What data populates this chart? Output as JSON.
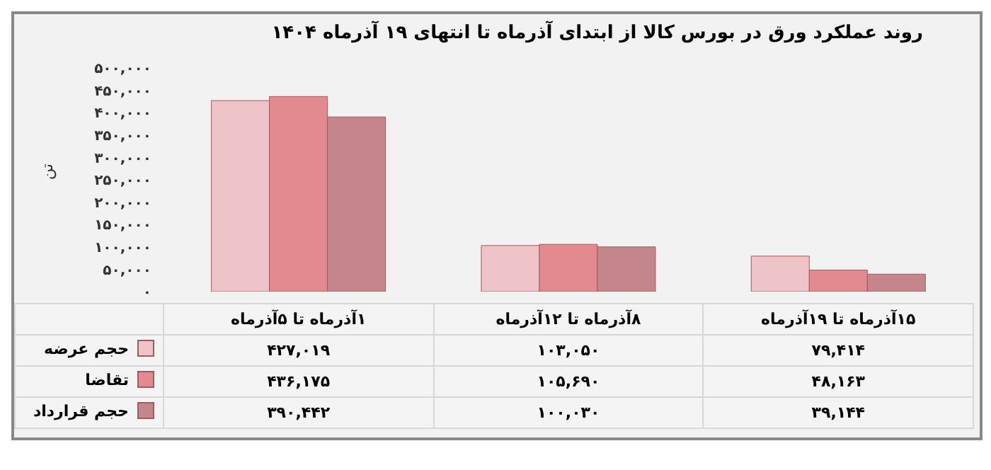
{
  "chart_data": {
    "type": "bar",
    "title": "روند عملکرد ورق در بورس کالا از ابتدای آذرماه تا انتهای ۱۹ آذرماه ۱۴۰۴",
    "ylabel": "تن",
    "categories": [
      "۱آذرماه تا ۵آذرماه",
      "۸آذرماه تا ۱۲آذرماه",
      "۱۵آذرماه تا ۱۹آذرماه"
    ],
    "series": [
      {
        "name": "حجم عرضه",
        "color": "#efc4c8",
        "values": [
          427019,
          103050,
          79414
        ],
        "value_labels": [
          "۴۲۷,۰۱۹",
          "۱۰۳,۰۵۰",
          "۷۹,۴۱۴"
        ]
      },
      {
        "name": "تقاضا",
        "color": "#e38a90",
        "values": [
          436175,
          105690,
          48163
        ],
        "value_labels": [
          "۴۳۶,۱۷۵",
          "۱۰۵,۶۹۰",
          "۴۸,۱۶۳"
        ]
      },
      {
        "name": "حجم قرارداد",
        "color": "#c4868a",
        "values": [
          390442,
          100030,
          39144
        ],
        "value_labels": [
          "۳۹۰,۴۴۲",
          "۱۰۰,۰۳۰",
          "۳۹,۱۴۴"
        ]
      }
    ],
    "ylim": [
      0,
      500000
    ],
    "yticks": [
      {
        "value": 0,
        "label": "۰"
      },
      {
        "value": 50000,
        "label": "۵۰,۰۰۰"
      },
      {
        "value": 100000,
        "label": "۱۰۰,۰۰۰"
      },
      {
        "value": 150000,
        "label": "۱۵۰,۰۰۰"
      },
      {
        "value": 200000,
        "label": "۲۰۰,۰۰۰"
      },
      {
        "value": 250000,
        "label": "۲۵۰,۰۰۰"
      },
      {
        "value": 300000,
        "label": "۳۰۰,۰۰۰"
      },
      {
        "value": 350000,
        "label": "۳۵۰,۰۰۰"
      },
      {
        "value": 400000,
        "label": "۴۰۰,۰۰۰"
      },
      {
        "value": 450000,
        "label": "۴۵۰,۰۰۰"
      },
      {
        "value": 500000,
        "label": "۵۰۰,۰۰۰"
      }
    ],
    "grid": false,
    "legend": "bottom left"
  }
}
